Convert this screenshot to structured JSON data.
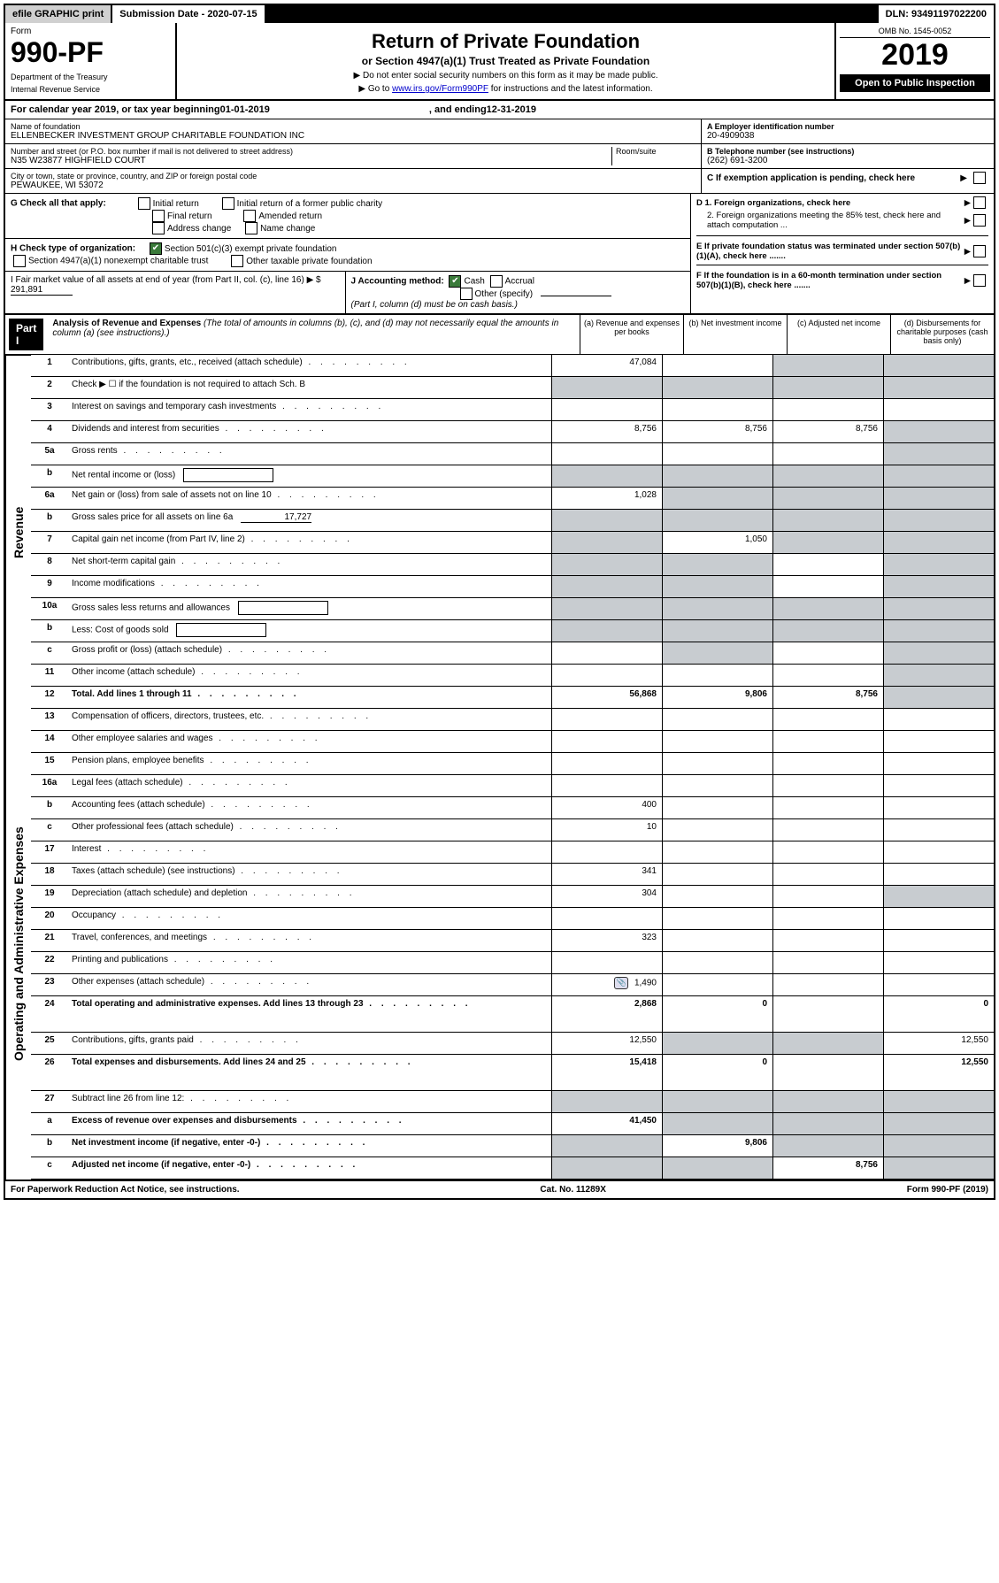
{
  "top": {
    "efile": "efile GRAPHIC print",
    "submission": "Submission Date - 2020-07-15",
    "dln": "DLN: 93491197022200"
  },
  "header": {
    "form_label": "Form",
    "form_number": "990-PF",
    "dept1": "Department of the Treasury",
    "dept2": "Internal Revenue Service",
    "title": "Return of Private Foundation",
    "subtitle": "or Section 4947(a)(1) Trust Treated as Private Foundation",
    "instr1": "▶ Do not enter social security numbers on this form as it may be made public.",
    "instr2_pre": "▶ Go to ",
    "instr2_link": "www.irs.gov/Form990PF",
    "instr2_post": " for instructions and the latest information.",
    "omb": "OMB No. 1545-0052",
    "year": "2019",
    "open": "Open to Public Inspection"
  },
  "cal": {
    "begin_label": "For calendar year 2019, or tax year beginning ",
    "begin_val": "01-01-2019",
    "end_label": ", and ending ",
    "end_val": "12-31-2019"
  },
  "info": {
    "name_label": "Name of foundation",
    "name_val": "ELLENBECKER INVESTMENT GROUP CHARITABLE FOUNDATION INC",
    "addr_label": "Number and street (or P.O. box number if mail is not delivered to street address)",
    "addr_val": "N35 W23877 HIGHFIELD COURT",
    "room_label": "Room/suite",
    "city_label": "City or town, state or province, country, and ZIP or foreign postal code",
    "city_val": "PEWAUKEE, WI  53072",
    "a_label": "A Employer identification number",
    "a_val": "20-4909038",
    "b_label": "B Telephone number (see instructions)",
    "b_val": "(262) 691-3200",
    "c_label": "C If exemption application is pending, check here"
  },
  "g": {
    "label": "G Check all that apply:",
    "opts": [
      "Initial return",
      "Initial return of a former public charity",
      "Final return",
      "Amended return",
      "Address change",
      "Name change"
    ]
  },
  "h": {
    "label": "H Check type of organization:",
    "opt1": "Section 501(c)(3) exempt private foundation",
    "opt2": "Section 4947(a)(1) nonexempt charitable trust",
    "opt3": "Other taxable private foundation"
  },
  "d": {
    "d1": "D 1. Foreign organizations, check here",
    "d2": "2. Foreign organizations meeting the 85% test, check here and attach computation ...",
    "e": "E  If private foundation status was terminated under section 507(b)(1)(A), check here .......",
    "f": "F  If the foundation is in a 60-month termination under section 507(b)(1)(B), check here ......."
  },
  "ij": {
    "i_label": "I Fair market value of all assets at end of year (from Part II, col. (c), line 16) ▶ $",
    "i_val": "291,891",
    "j_label": "J Accounting method:",
    "j_cash": "Cash",
    "j_accrual": "Accrual",
    "j_other": "Other (specify)",
    "j_note": "(Part I, column (d) must be on cash basis.)"
  },
  "part1": {
    "label": "Part I",
    "title": "Analysis of Revenue and Expenses",
    "note": "(The total of amounts in columns (b), (c), and (d) may not necessarily equal the amounts in column (a) (see instructions).)",
    "cols": {
      "a": "(a)  Revenue and expenses per books",
      "b": "(b)  Net investment income",
      "c": "(c)  Adjusted net income",
      "d": "(d)  Disbursements for charitable purposes (cash basis only)"
    }
  },
  "side": {
    "revenue": "Revenue",
    "expenses": "Operating and Administrative Expenses"
  },
  "rows": [
    {
      "n": "1",
      "d": "Contributions, gifts, grants, etc., received (attach schedule)",
      "a": "47,084",
      "shB": false,
      "shC": true,
      "shD": true
    },
    {
      "n": "2",
      "d": "Check ▶ ☐ if the foundation is not required to attach Sch. B",
      "dotsPre": true,
      "shA": true,
      "shB": true,
      "shC": true,
      "shD": true
    },
    {
      "n": "3",
      "d": "Interest on savings and temporary cash investments"
    },
    {
      "n": "4",
      "d": "Dividends and interest from securities",
      "a": "8,756",
      "b": "8,756",
      "c": "8,756",
      "shD": true
    },
    {
      "n": "5a",
      "d": "Gross rents",
      "shD": true
    },
    {
      "n": "b",
      "d": "Net rental income or (loss)",
      "inlineBox": true,
      "shA": true,
      "shB": true,
      "shC": true,
      "shD": true
    },
    {
      "n": "6a",
      "d": "Net gain or (loss) from sale of assets not on line 10",
      "a": "1,028",
      "shB": true,
      "shC": true,
      "shD": true
    },
    {
      "n": "b",
      "d": "Gross sales price for all assets on line 6a",
      "inlineVal": "17,727",
      "inlineUnderline": true,
      "shA": true,
      "shB": true,
      "shC": true,
      "shD": true
    },
    {
      "n": "7",
      "d": "Capital gain net income (from Part IV, line 2)",
      "b": "1,050",
      "shA": true,
      "shC": true,
      "shD": true
    },
    {
      "n": "8",
      "d": "Net short-term capital gain",
      "shA": true,
      "shB": true,
      "shD": true
    },
    {
      "n": "9",
      "d": "Income modifications",
      "shA": true,
      "shB": true,
      "shD": true
    },
    {
      "n": "10a",
      "d": "Gross sales less returns and allowances",
      "inlineBox": true,
      "shA": true,
      "shB": true,
      "shC": true,
      "shD": true
    },
    {
      "n": "b",
      "d": "Less: Cost of goods sold",
      "inlineBox": true,
      "shA": true,
      "shB": true,
      "shC": true,
      "shD": true
    },
    {
      "n": "c",
      "d": "Gross profit or (loss) (attach schedule)",
      "shB": true,
      "shD": true
    },
    {
      "n": "11",
      "d": "Other income (attach schedule)",
      "shD": true
    },
    {
      "n": "12",
      "d": "Total. Add lines 1 through 11",
      "a": "56,868",
      "b": "9,806",
      "c": "8,756",
      "shD": true,
      "bold": true
    }
  ],
  "exp_rows": [
    {
      "n": "13",
      "d": "Compensation of officers, directors, trustees, etc."
    },
    {
      "n": "14",
      "d": "Other employee salaries and wages"
    },
    {
      "n": "15",
      "d": "Pension plans, employee benefits"
    },
    {
      "n": "16a",
      "d": "Legal fees (attach schedule)"
    },
    {
      "n": "b",
      "d": "Accounting fees (attach schedule)",
      "a": "400"
    },
    {
      "n": "c",
      "d": "Other professional fees (attach schedule)",
      "a": "10"
    },
    {
      "n": "17",
      "d": "Interest"
    },
    {
      "n": "18",
      "d": "Taxes (attach schedule) (see instructions)",
      "a": "341"
    },
    {
      "n": "19",
      "d": "Depreciation (attach schedule) and depletion",
      "a": "304",
      "shD": true
    },
    {
      "n": "20",
      "d": "Occupancy"
    },
    {
      "n": "21",
      "d": "Travel, conferences, and meetings",
      "a": "323"
    },
    {
      "n": "22",
      "d": "Printing and publications"
    },
    {
      "n": "23",
      "d": "Other expenses (attach schedule)",
      "a": "1,490",
      "attachIcon": true
    },
    {
      "n": "24",
      "d": "Total operating and administrative expenses. Add lines 13 through 23",
      "a": "2,868",
      "b": "0",
      "dVal": "0",
      "bold": true,
      "tall": true
    },
    {
      "n": "25",
      "d": "Contributions, gifts, grants paid",
      "a": "12,550",
      "dVal": "12,550",
      "shB": true,
      "shC": true
    },
    {
      "n": "26",
      "d": "Total expenses and disbursements. Add lines 24 and 25",
      "a": "15,418",
      "b": "0",
      "dVal": "12,550",
      "bold": true,
      "tall": true
    },
    {
      "n": "27",
      "d": "Subtract line 26 from line 12:",
      "shA": true,
      "shB": true,
      "shC": true,
      "shD": true
    },
    {
      "n": "a",
      "d": "Excess of revenue over expenses and disbursements",
      "a": "41,450",
      "shB": true,
      "shC": true,
      "shD": true,
      "bold": true
    },
    {
      "n": "b",
      "d": "Net investment income (if negative, enter -0-)",
      "b": "9,806",
      "shA": true,
      "shC": true,
      "shD": true,
      "bold": true
    },
    {
      "n": "c",
      "d": "Adjusted net income (if negative, enter -0-)",
      "c": "8,756",
      "shA": true,
      "shB": true,
      "shD": true,
      "bold": true
    }
  ],
  "footer": {
    "left": "For Paperwork Reduction Act Notice, see instructions.",
    "mid": "Cat. No. 11289X",
    "right": "Form 990-PF (2019)"
  },
  "dots": "  .   .   .   .   .   .   .   .   ."
}
